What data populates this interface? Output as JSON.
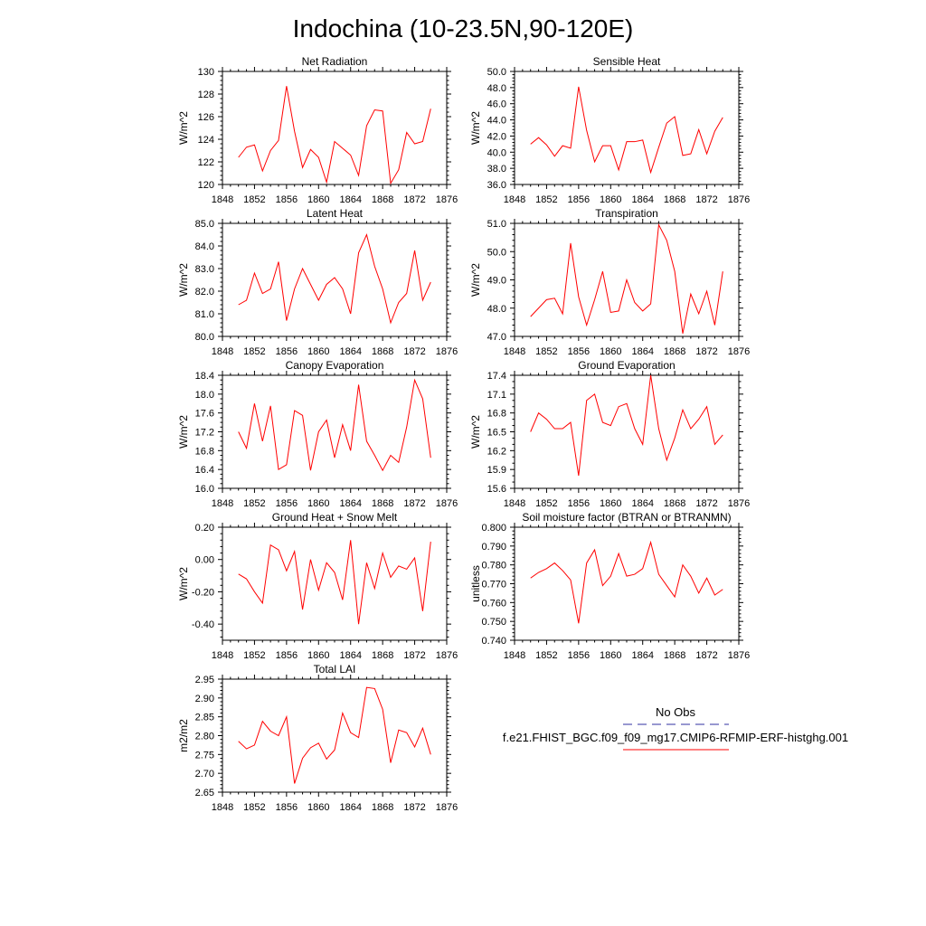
{
  "page_title": "Indochina (10-23.5N,90-120E)",
  "colors": {
    "model_line": "#ff0000",
    "obs_line": "#3030a0",
    "axis": "#000000"
  },
  "legend": {
    "obs_label": "No Obs",
    "model_label": "f.e21.FHIST_BGC.f09_f09_mg17.CMIP6-RFMIP-ERF-histghg.001"
  },
  "chart_data": [
    {
      "type": "line",
      "title": "Net Radiation",
      "ylabel": "W/m^2",
      "xlim": [
        1848,
        1876
      ],
      "ylim": [
        120,
        130
      ],
      "xticks": [
        1848,
        1852,
        1856,
        1860,
        1864,
        1868,
        1872,
        1876
      ],
      "yticks": [
        120,
        122,
        124,
        126,
        128,
        130
      ],
      "ytick_labels": [
        "120",
        "122",
        "124",
        "126",
        "128",
        "130"
      ],
      "yminor": 4,
      "x": [
        1850,
        1851,
        1852,
        1853,
        1854,
        1855,
        1856,
        1857,
        1858,
        1859,
        1860,
        1861,
        1862,
        1863,
        1864,
        1865,
        1866,
        1867,
        1868,
        1869,
        1870,
        1871,
        1872,
        1873,
        1874
      ],
      "series": [
        {
          "name": "f.e21.FHIST_BGC.f09_f09_mg17.CMIP6-RFMIP-ERF-histghg.001",
          "values": [
            122.4,
            123.3,
            123.5,
            121.2,
            123.0,
            123.9,
            128.7,
            124.7,
            121.5,
            123.1,
            122.4,
            120.2,
            123.8,
            123.2,
            122.6,
            120.8,
            125.2,
            126.6,
            126.5,
            120.1,
            121.3,
            124.6,
            123.6,
            123.8,
            126.7
          ]
        }
      ]
    },
    {
      "type": "line",
      "title": "Sensible Heat",
      "ylabel": "W/m^2",
      "xlim": [
        1848,
        1876
      ],
      "ylim": [
        36,
        50
      ],
      "xticks": [
        1848,
        1852,
        1856,
        1860,
        1864,
        1868,
        1872,
        1876
      ],
      "yticks": [
        36,
        38,
        40,
        42,
        44,
        46,
        48,
        50
      ],
      "ytick_labels": [
        "36.0",
        "38.0",
        "40.0",
        "42.0",
        "44.0",
        "46.0",
        "48.0",
        "50.0"
      ],
      "yminor": 4,
      "x": [
        1850,
        1851,
        1852,
        1853,
        1854,
        1855,
        1856,
        1857,
        1858,
        1859,
        1860,
        1861,
        1862,
        1863,
        1864,
        1865,
        1866,
        1867,
        1868,
        1869,
        1870,
        1871,
        1872,
        1873,
        1874
      ],
      "series": [
        {
          "name": "f.e21.FHIST_BGC.f09_f09_mg17.CMIP6-RFMIP-ERF-histghg.001",
          "values": [
            41.0,
            41.8,
            40.9,
            39.5,
            40.8,
            40.5,
            48.1,
            42.7,
            38.8,
            40.8,
            40.8,
            37.8,
            41.3,
            41.3,
            41.5,
            37.5,
            40.6,
            43.6,
            44.4,
            39.6,
            39.8,
            42.8,
            39.8,
            42.6,
            44.3
          ]
        }
      ]
    },
    {
      "type": "line",
      "title": "Latent Heat",
      "ylabel": "W/m^2",
      "xlim": [
        1848,
        1876
      ],
      "ylim": [
        80,
        85
      ],
      "xticks": [
        1848,
        1852,
        1856,
        1860,
        1864,
        1868,
        1872,
        1876
      ],
      "yticks": [
        80,
        81,
        82,
        83,
        84,
        85
      ],
      "ytick_labels": [
        "80.0",
        "81.0",
        "82.0",
        "83.0",
        "84.0",
        "85.0"
      ],
      "yminor": 4,
      "x": [
        1850,
        1851,
        1852,
        1853,
        1854,
        1855,
        1856,
        1857,
        1858,
        1859,
        1860,
        1861,
        1862,
        1863,
        1864,
        1865,
        1866,
        1867,
        1868,
        1869,
        1870,
        1871,
        1872,
        1873,
        1874
      ],
      "series": [
        {
          "name": "f.e21.FHIST_BGC.f09_f09_mg17.CMIP6-RFMIP-ERF-histghg.001",
          "values": [
            81.4,
            81.6,
            82.8,
            81.9,
            82.1,
            83.3,
            80.7,
            82.1,
            83.0,
            82.3,
            81.6,
            82.3,
            82.6,
            82.1,
            81.0,
            83.7,
            84.5,
            83.1,
            82.1,
            80.6,
            81.5,
            81.9,
            83.8,
            81.6,
            82.4
          ]
        }
      ]
    },
    {
      "type": "line",
      "title": "Transpiration",
      "ylabel": "W/m^2",
      "xlim": [
        1848,
        1876
      ],
      "ylim": [
        47,
        51
      ],
      "xticks": [
        1848,
        1852,
        1856,
        1860,
        1864,
        1868,
        1872,
        1876
      ],
      "yticks": [
        47,
        48,
        49,
        50,
        51
      ],
      "ytick_labels": [
        "47.0",
        "48.0",
        "49.0",
        "50.0",
        "51.0"
      ],
      "yminor": 4,
      "x": [
        1850,
        1851,
        1852,
        1853,
        1854,
        1855,
        1856,
        1857,
        1858,
        1859,
        1860,
        1861,
        1862,
        1863,
        1864,
        1865,
        1866,
        1867,
        1868,
        1869,
        1870,
        1871,
        1872,
        1873,
        1874
      ],
      "series": [
        {
          "name": "f.e21.FHIST_BGC.f09_f09_mg17.CMIP6-RFMIP-ERF-histghg.001",
          "values": [
            47.7,
            48.0,
            48.3,
            48.35,
            47.8,
            50.3,
            48.4,
            47.4,
            48.3,
            49.3,
            47.85,
            47.9,
            49.0,
            48.2,
            47.9,
            48.15,
            50.95,
            50.4,
            49.3,
            47.1,
            48.5,
            47.8,
            48.6,
            47.4,
            49.3
          ]
        }
      ]
    },
    {
      "type": "line",
      "title": "Canopy Evaporation",
      "ylabel": "W/m^2",
      "xlim": [
        1848,
        1876
      ],
      "ylim": [
        16.0,
        18.4
      ],
      "xticks": [
        1848,
        1852,
        1856,
        1860,
        1864,
        1868,
        1872,
        1876
      ],
      "yticks": [
        16.0,
        16.4,
        16.8,
        17.2,
        17.6,
        18.0,
        18.4
      ],
      "ytick_labels": [
        "16.0",
        "16.4",
        "16.8",
        "17.2",
        "17.6",
        "18.0",
        "18.4"
      ],
      "yminor": 3,
      "x": [
        1850,
        1851,
        1852,
        1853,
        1854,
        1855,
        1856,
        1857,
        1858,
        1859,
        1860,
        1861,
        1862,
        1863,
        1864,
        1865,
        1866,
        1867,
        1868,
        1869,
        1870,
        1871,
        1872,
        1873,
        1874
      ],
      "series": [
        {
          "name": "f.e21.FHIST_BGC.f09_f09_mg17.CMIP6-RFMIP-ERF-histghg.001",
          "values": [
            17.2,
            16.85,
            17.8,
            17.0,
            17.75,
            16.4,
            16.5,
            17.65,
            17.55,
            16.38,
            17.2,
            17.45,
            16.65,
            17.35,
            16.8,
            18.2,
            17.0,
            16.7,
            16.38,
            16.7,
            16.55,
            17.3,
            18.3,
            17.9,
            16.65
          ]
        }
      ]
    },
    {
      "type": "line",
      "title": "Ground Evaporation",
      "ylabel": "W/m^2",
      "xlim": [
        1848,
        1876
      ],
      "ylim": [
        15.6,
        17.4
      ],
      "xticks": [
        1848,
        1852,
        1856,
        1860,
        1864,
        1868,
        1872,
        1876
      ],
      "yticks": [
        15.6,
        15.9,
        16.2,
        16.5,
        16.8,
        17.1,
        17.4
      ],
      "ytick_labels": [
        "15.6",
        "15.9",
        "16.2",
        "16.5",
        "16.8",
        "17.1",
        "17.4"
      ],
      "yminor": 2,
      "x": [
        1850,
        1851,
        1852,
        1853,
        1854,
        1855,
        1856,
        1857,
        1858,
        1859,
        1860,
        1861,
        1862,
        1863,
        1864,
        1865,
        1866,
        1867,
        1868,
        1869,
        1870,
        1871,
        1872,
        1873,
        1874
      ],
      "series": [
        {
          "name": "f.e21.FHIST_BGC.f09_f09_mg17.CMIP6-RFMIP-ERF-histghg.001",
          "values": [
            16.5,
            16.8,
            16.7,
            16.55,
            16.55,
            16.65,
            15.8,
            17.0,
            17.1,
            16.65,
            16.6,
            16.9,
            16.95,
            16.55,
            16.3,
            17.4,
            16.55,
            16.05,
            16.4,
            16.85,
            16.55,
            16.7,
            16.9,
            16.3,
            16.45
          ]
        }
      ]
    },
    {
      "type": "line",
      "title": "Ground Heat + Snow Melt",
      "ylabel": "W/m^2",
      "xlim": [
        1848,
        1876
      ],
      "ylim": [
        -0.5,
        0.2
      ],
      "xticks": [
        1848,
        1852,
        1856,
        1860,
        1864,
        1868,
        1872,
        1876
      ],
      "yticks": [
        -0.4,
        -0.2,
        0.0,
        0.2
      ],
      "ytick_labels": [
        "-0.40",
        "-0.20",
        "0.00",
        "0.20"
      ],
      "yminor": 4,
      "x": [
        1850,
        1851,
        1852,
        1853,
        1854,
        1855,
        1856,
        1857,
        1858,
        1859,
        1860,
        1861,
        1862,
        1863,
        1864,
        1865,
        1866,
        1867,
        1868,
        1869,
        1870,
        1871,
        1872,
        1873,
        1874
      ],
      "series": [
        {
          "name": "f.e21.FHIST_BGC.f09_f09_mg17.CMIP6-RFMIP-ERF-histghg.001",
          "values": [
            -0.09,
            -0.12,
            -0.2,
            -0.27,
            0.09,
            0.06,
            -0.07,
            0.05,
            -0.31,
            0.0,
            -0.19,
            -0.02,
            -0.08,
            -0.25,
            0.12,
            -0.4,
            -0.02,
            -0.18,
            0.04,
            -0.11,
            -0.04,
            -0.06,
            0.01,
            -0.32,
            0.11
          ]
        }
      ]
    },
    {
      "type": "line",
      "title": "Soil moisture factor (BTRAN or BTRANMN)",
      "ylabel": "unitless",
      "xlim": [
        1848,
        1876
      ],
      "ylim": [
        0.74,
        0.8
      ],
      "xticks": [
        1848,
        1852,
        1856,
        1860,
        1864,
        1868,
        1872,
        1876
      ],
      "yticks": [
        0.74,
        0.75,
        0.76,
        0.77,
        0.78,
        0.79,
        0.8
      ],
      "ytick_labels": [
        "0.740",
        "0.750",
        "0.760",
        "0.770",
        "0.780",
        "0.790",
        "0.800"
      ],
      "yminor": 4,
      "x": [
        1850,
        1851,
        1852,
        1853,
        1854,
        1855,
        1856,
        1857,
        1858,
        1859,
        1860,
        1861,
        1862,
        1863,
        1864,
        1865,
        1866,
        1867,
        1868,
        1869,
        1870,
        1871,
        1872,
        1873,
        1874
      ],
      "series": [
        {
          "name": "f.e21.FHIST_BGC.f09_f09_mg17.CMIP6-RFMIP-ERF-histghg.001",
          "values": [
            0.773,
            0.776,
            0.778,
            0.781,
            0.777,
            0.772,
            0.749,
            0.781,
            0.788,
            0.769,
            0.774,
            0.786,
            0.774,
            0.775,
            0.778,
            0.792,
            0.775,
            0.769,
            0.763,
            0.78,
            0.774,
            0.765,
            0.773,
            0.764,
            0.767
          ]
        }
      ]
    },
    {
      "type": "line",
      "title": "Total LAI",
      "ylabel": "m2/m2",
      "xlim": [
        1848,
        1876
      ],
      "ylim": [
        2.65,
        2.95
      ],
      "xticks": [
        1848,
        1852,
        1856,
        1860,
        1864,
        1868,
        1872,
        1876
      ],
      "yticks": [
        2.65,
        2.7,
        2.75,
        2.8,
        2.85,
        2.9,
        2.95
      ],
      "ytick_labels": [
        "2.65",
        "2.70",
        "2.75",
        "2.80",
        "2.85",
        "2.90",
        "2.95"
      ],
      "yminor": 4,
      "x": [
        1850,
        1851,
        1852,
        1853,
        1854,
        1855,
        1856,
        1857,
        1858,
        1859,
        1860,
        1861,
        1862,
        1863,
        1864,
        1865,
        1866,
        1867,
        1868,
        1869,
        1870,
        1871,
        1872,
        1873,
        1874
      ],
      "series": [
        {
          "name": "f.e21.FHIST_BGC.f09_f09_mg17.CMIP6-RFMIP-ERF-histghg.001",
          "values": [
            2.785,
            2.765,
            2.775,
            2.838,
            2.812,
            2.8,
            2.85,
            2.673,
            2.74,
            2.768,
            2.78,
            2.738,
            2.762,
            2.86,
            2.808,
            2.795,
            2.928,
            2.925,
            2.87,
            2.728,
            2.815,
            2.808,
            2.77,
            2.82,
            2.75
          ]
        }
      ]
    }
  ]
}
